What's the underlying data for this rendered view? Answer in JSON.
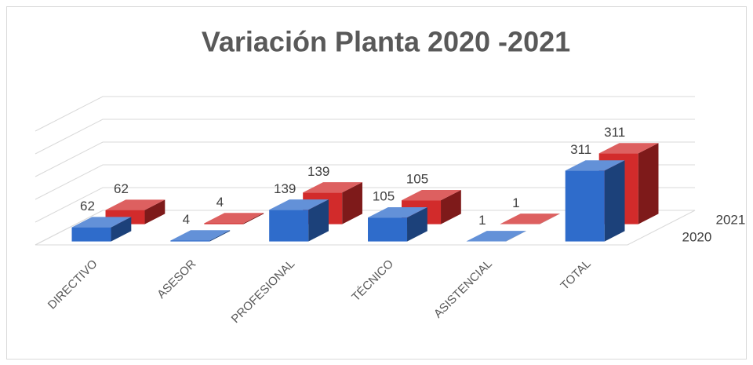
{
  "chart_data": {
    "type": "bar3d",
    "title": "Variación Planta 2020 -2021",
    "categories": [
      "DIRECTIVO",
      "ASESOR",
      "PROFESIONAL",
      "TÉCNICO",
      "ASISTENCIAL",
      "TOTAL"
    ],
    "series": [
      {
        "name": "2020",
        "color": "#2f6ccb",
        "values": [
          62,
          4,
          139,
          105,
          1,
          311
        ]
      },
      {
        "name": "2021",
        "color": "#d22b2b",
        "values": [
          62,
          4,
          139,
          105,
          1,
          311
        ]
      }
    ],
    "ylim": [
      0,
      500
    ],
    "yticks": [
      0,
      100,
      200,
      300,
      400,
      500
    ],
    "grid": true
  }
}
